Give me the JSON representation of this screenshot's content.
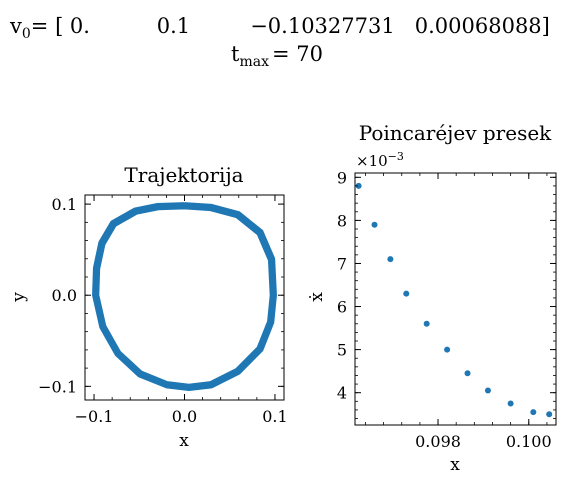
{
  "header": {
    "v0_label": "v",
    "v0_sub": "0",
    "v0_values": "= [ 0.          0.1         −0.10327731   0.00068088]",
    "tmax_label": "t",
    "tmax_sub": "max",
    "tmax_value": "= 70"
  },
  "chart_data": [
    {
      "type": "line",
      "title": "Trajektorija",
      "xlabel": "x",
      "ylabel": "y",
      "xlim": [
        -0.11,
        0.11
      ],
      "ylim": [
        -0.115,
        0.11
      ],
      "xticks": [
        -0.1,
        0.0,
        0.1
      ],
      "xtick_labels": [
        "−0.1",
        "0.0",
        "0.1"
      ],
      "yticks": [
        -0.1,
        0.0,
        0.1
      ],
      "ytick_labels": [
        "−0.1",
        "0.0",
        "0.1"
      ],
      "color": "#1f77b4",
      "grid": false,
      "series": [
        {
          "x": [
            0.0,
            0.03,
            0.06,
            0.085,
            0.098,
            0.1,
            0.097,
            0.085,
            0.06,
            0.03,
            0.005,
            -0.02,
            -0.05,
            -0.075,
            -0.092,
            -0.1,
            -0.099,
            -0.093,
            -0.08,
            -0.055,
            -0.03,
            0.0
          ],
          "y": [
            0.1,
            0.098,
            0.09,
            0.07,
            0.04,
            0.0,
            -0.03,
            -0.06,
            -0.085,
            -0.1,
            -0.103,
            -0.1,
            -0.088,
            -0.065,
            -0.035,
            0.0,
            0.03,
            0.058,
            0.08,
            0.094,
            0.099,
            0.1
          ]
        }
      ]
    },
    {
      "type": "scatter",
      "title": "Poincaréjev presek",
      "xlabel": "x",
      "ylabel": "ẋ",
      "offset_label": "×10",
      "offset_exp": "−3",
      "xlim": [
        0.09617,
        0.1006
      ],
      "ylim": [
        3.25,
        9.1
      ],
      "xticks": [
        0.098,
        0.1
      ],
      "xtick_labels": [
        "0.098",
        "0.100"
      ],
      "yticks": [
        4,
        5,
        6,
        7,
        8,
        9
      ],
      "ytick_labels": [
        "4",
        "5",
        "6",
        "7",
        "8",
        "9"
      ],
      "color": "#1f77b4",
      "grid": false,
      "series": [
        {
          "x": [
            0.09625,
            0.0966,
            0.09695,
            0.0973,
            0.09775,
            0.0982,
            0.09865,
            0.0991,
            0.0996,
            0.1001,
            0.10045
          ],
          "y": [
            8.8,
            7.9,
            7.1,
            6.3,
            5.6,
            5.0,
            4.45,
            4.05,
            3.75,
            3.55,
            3.5
          ]
        }
      ]
    }
  ]
}
